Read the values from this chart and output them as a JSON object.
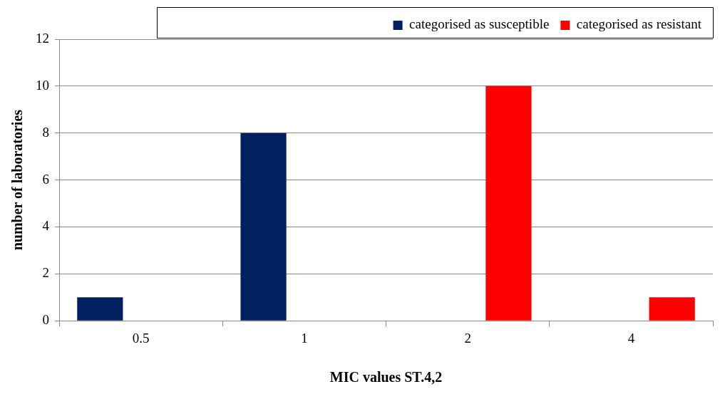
{
  "chart_data": {
    "type": "bar",
    "xlabel": "MIC values ST.4,2",
    "ylabel": "number of laboratories",
    "categories": [
      "0.5",
      "1",
      "2",
      "4"
    ],
    "series": [
      {
        "name": "categorised as susceptible",
        "color": "#002060",
        "values": [
          1,
          8,
          0,
          0
        ]
      },
      {
        "name": "categorised as resistant",
        "color": "#ff0000",
        "values": [
          0,
          0,
          10,
          1
        ]
      }
    ],
    "ylim": [
      0,
      12
    ],
    "yticks": [
      0,
      2,
      4,
      6,
      8,
      10,
      12
    ],
    "grid": "y",
    "legend": "top"
  }
}
